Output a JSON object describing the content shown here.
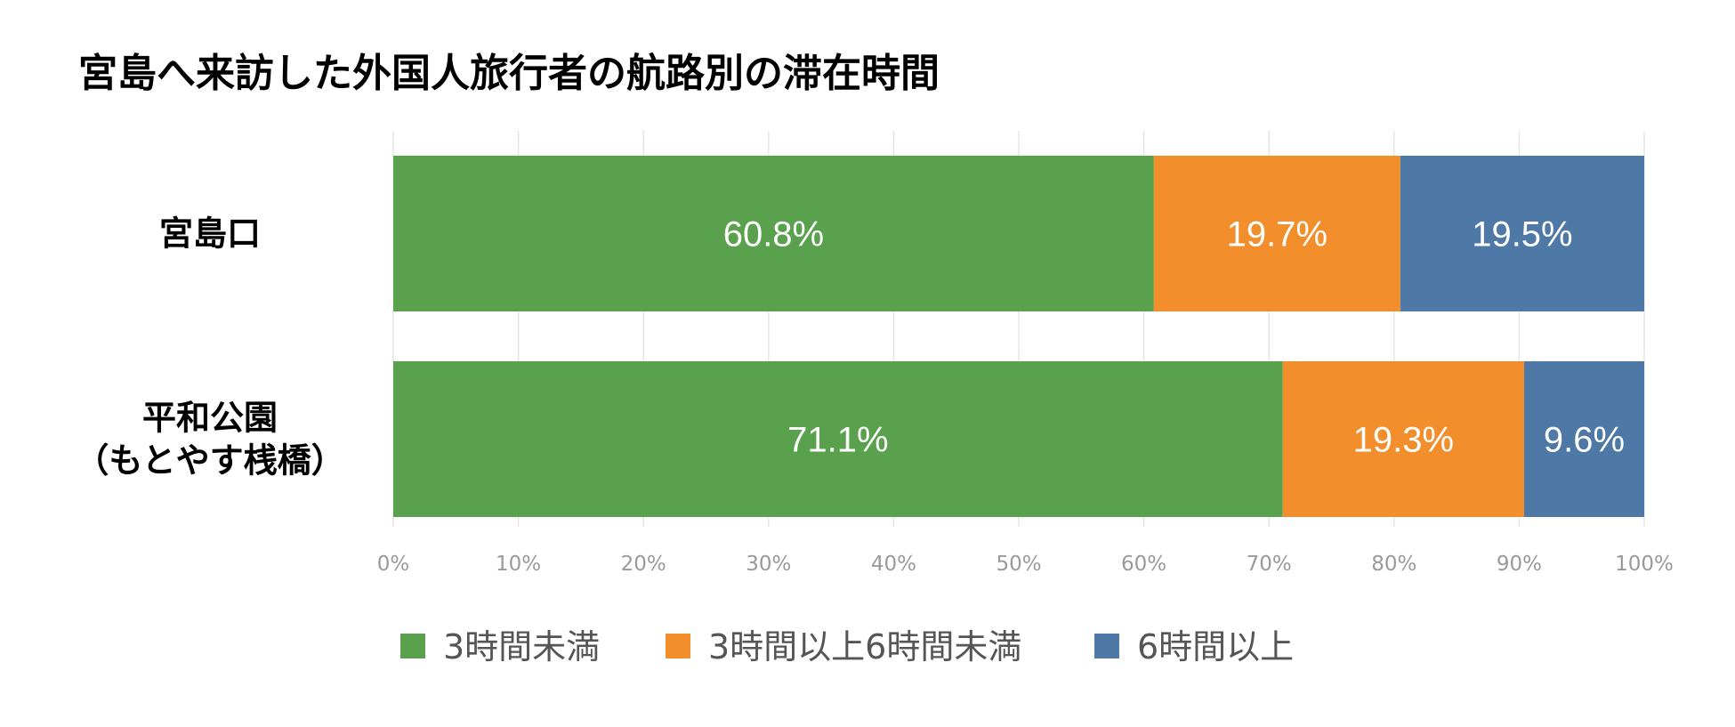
{
  "chart_data": {
    "type": "bar",
    "orientation": "horizontal",
    "stacked": true,
    "title": "宮島へ来訪した外国人旅行者の航路別の滞在時間",
    "categories": [
      [
        "宮島口"
      ],
      [
        "平和公園",
        "（もとやす桟橋）"
      ]
    ],
    "series": [
      {
        "name": "3時間未満",
        "color": "#5aa14d",
        "values": [
          60.8,
          71.1
        ],
        "labels": [
          "60.8%",
          "71.1%"
        ]
      },
      {
        "name": "3時間以上6時間未満",
        "color": "#f28f2c",
        "values": [
          19.7,
          19.3
        ],
        "labels": [
          "19.7%",
          "19.3%"
        ]
      },
      {
        "name": "6時間以上",
        "color": "#4e78a5",
        "values": [
          19.5,
          9.6
        ],
        "labels": [
          "19.5%",
          "9.6%"
        ]
      }
    ],
    "xlim": [
      0,
      100
    ],
    "xticks": [
      "0%",
      "10%",
      "20%",
      "30%",
      "40%",
      "50%",
      "60%",
      "70%",
      "80%",
      "90%",
      "100%"
    ],
    "grid": true,
    "legend_position": "bottom"
  }
}
